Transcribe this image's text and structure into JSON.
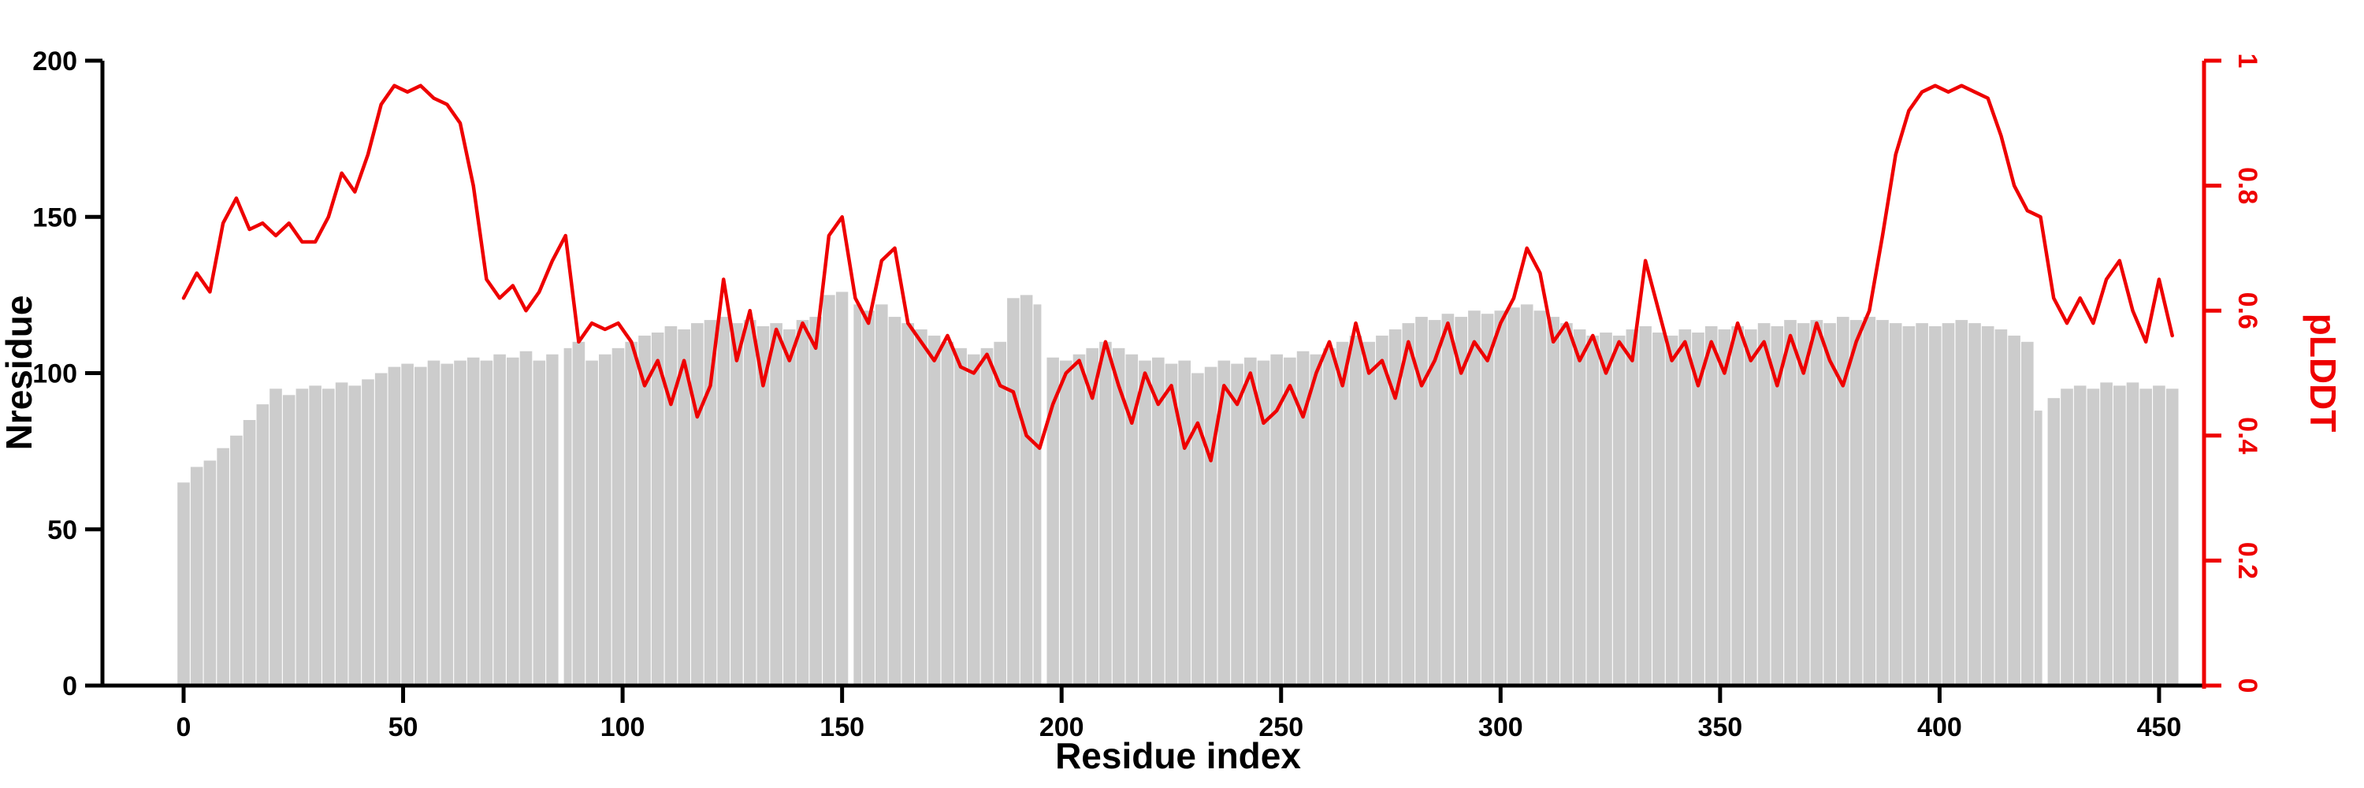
{
  "figure": {
    "background": "#ffffff"
  },
  "chart_data": {
    "type": "bar",
    "title": "",
    "xlabel": "Residue index",
    "ylabel_left": "Nresidue",
    "ylabel_right": "pLDDT",
    "xlim": [
      -20,
      470
    ],
    "ylim_left": [
      0,
      200
    ],
    "ylim_right": [
      0,
      1
    ],
    "x_ticks": [
      0,
      50,
      100,
      150,
      200,
      250,
      300,
      350,
      400,
      450
    ],
    "left_ticks": [
      0,
      50,
      100,
      150,
      200
    ],
    "right_ticks": [
      0,
      0.2,
      0.4,
      0.6,
      0.8,
      1
    ],
    "grid": false,
    "legend": "none",
    "bar_color": "#cccccc",
    "line_color": "#ee0000",
    "axis_color": "#000000",
    "bar_gaps": [
      86,
      152,
      196,
      424
    ],
    "x": [
      0,
      3,
      6,
      9,
      12,
      15,
      18,
      21,
      24,
      27,
      30,
      33,
      36,
      39,
      42,
      45,
      48,
      51,
      54,
      57,
      60,
      63,
      66,
      69,
      72,
      75,
      78,
      81,
      84,
      87,
      90,
      93,
      96,
      99,
      102,
      105,
      108,
      111,
      114,
      117,
      120,
      123,
      126,
      129,
      132,
      135,
      138,
      141,
      144,
      147,
      150,
      153,
      156,
      159,
      162,
      165,
      168,
      171,
      174,
      177,
      180,
      183,
      186,
      189,
      192,
      195,
      198,
      201,
      204,
      207,
      210,
      213,
      216,
      219,
      222,
      225,
      228,
      231,
      234,
      237,
      240,
      243,
      246,
      249,
      252,
      255,
      258,
      261,
      264,
      267,
      270,
      273,
      276,
      279,
      282,
      285,
      288,
      291,
      294,
      297,
      300,
      303,
      306,
      309,
      312,
      315,
      318,
      321,
      324,
      327,
      330,
      333,
      336,
      339,
      342,
      345,
      348,
      351,
      354,
      357,
      360,
      363,
      366,
      369,
      372,
      375,
      378,
      381,
      384,
      387,
      390,
      393,
      396,
      399,
      402,
      405,
      408,
      411,
      414,
      417,
      420,
      423,
      426,
      429,
      432,
      435,
      438,
      441,
      444,
      447,
      450,
      453
    ],
    "series": [
      {
        "name": "Nresidue",
        "style": "bar",
        "axis": "left",
        "values": [
          65,
          70,
          72,
          76,
          80,
          85,
          90,
          95,
          93,
          95,
          96,
          95,
          97,
          96,
          98,
          100,
          102,
          103,
          102,
          104,
          103,
          104,
          105,
          104,
          106,
          105,
          107,
          104,
          106,
          108,
          110,
          104,
          106,
          108,
          110,
          112,
          113,
          115,
          114,
          116,
          117,
          118,
          116,
          117,
          115,
          116,
          114,
          117,
          118,
          125,
          126,
          122,
          120,
          122,
          118,
          116,
          114,
          112,
          110,
          108,
          106,
          108,
          110,
          124,
          125,
          122,
          105,
          104,
          106,
          108,
          110,
          108,
          106,
          104,
          105,
          103,
          104,
          100,
          102,
          104,
          103,
          105,
          104,
          106,
          105,
          107,
          106,
          108,
          110,
          112,
          110,
          112,
          114,
          116,
          118,
          117,
          119,
          118,
          120,
          119,
          120,
          121,
          122,
          120,
          118,
          116,
          114,
          112,
          113,
          112,
          114,
          115,
          113,
          112,
          114,
          113,
          115,
          114,
          115,
          114,
          116,
          115,
          117,
          116,
          117,
          116,
          118,
          117,
          118,
          117,
          116,
          115,
          116,
          115,
          116,
          117,
          116,
          115,
          114,
          112,
          110,
          88,
          92,
          95,
          96,
          95,
          97,
          96,
          97,
          95,
          96,
          95
        ]
      },
      {
        "name": "pLDDT",
        "style": "line",
        "axis": "right",
        "values": [
          0.62,
          0.66,
          0.63,
          0.74,
          0.78,
          0.73,
          0.74,
          0.72,
          0.74,
          0.71,
          0.71,
          0.75,
          0.82,
          0.79,
          0.85,
          0.93,
          0.96,
          0.95,
          0.96,
          0.94,
          0.93,
          0.9,
          0.8,
          0.65,
          0.62,
          0.64,
          0.6,
          0.63,
          0.68,
          0.72,
          0.55,
          0.58,
          0.57,
          0.58,
          0.55,
          0.48,
          0.52,
          0.45,
          0.52,
          0.43,
          0.48,
          0.65,
          0.52,
          0.6,
          0.48,
          0.57,
          0.52,
          0.58,
          0.54,
          0.72,
          0.75,
          0.62,
          0.58,
          0.68,
          0.7,
          0.58,
          0.55,
          0.52,
          0.56,
          0.51,
          0.5,
          0.53,
          0.48,
          0.47,
          0.4,
          0.38,
          0.45,
          0.5,
          0.52,
          0.46,
          0.55,
          0.48,
          0.42,
          0.5,
          0.45,
          0.48,
          0.38,
          0.42,
          0.36,
          0.48,
          0.45,
          0.5,
          0.42,
          0.44,
          0.48,
          0.43,
          0.5,
          0.55,
          0.48,
          0.58,
          0.5,
          0.52,
          0.46,
          0.55,
          0.48,
          0.52,
          0.58,
          0.5,
          0.55,
          0.52,
          0.58,
          0.62,
          0.7,
          0.66,
          0.55,
          0.58,
          0.52,
          0.56,
          0.5,
          0.55,
          0.52,
          0.68,
          0.6,
          0.52,
          0.55,
          0.48,
          0.55,
          0.5,
          0.58,
          0.52,
          0.55,
          0.48,
          0.56,
          0.5,
          0.58,
          0.52,
          0.48,
          0.55,
          0.6,
          0.72,
          0.85,
          0.92,
          0.95,
          0.96,
          0.95,
          0.96,
          0.95,
          0.94,
          0.88,
          0.8,
          0.76,
          0.75,
          0.62,
          0.58,
          0.62,
          0.58,
          0.65,
          0.68,
          0.6,
          0.55,
          0.65,
          0.56
        ]
      }
    ]
  }
}
